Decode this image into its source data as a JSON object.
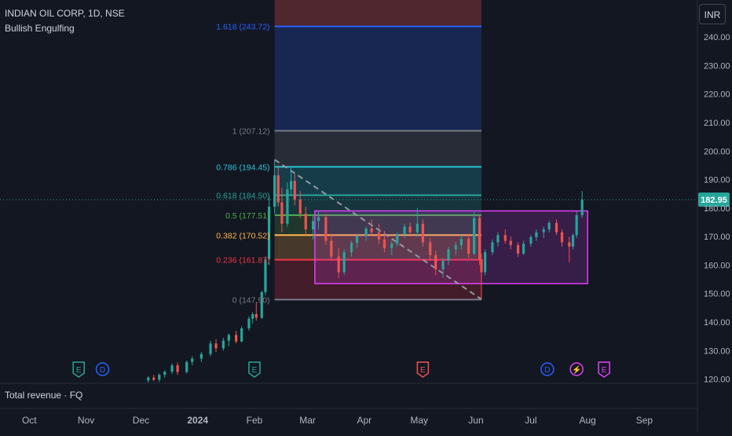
{
  "header": {
    "symbol": "INDIAN OIL CORP, 1D, NSE",
    "indicator": "Bullish Engulfing",
    "currency": "INR"
  },
  "bottom_pane": {
    "label": "Total revenue · FQ"
  },
  "colors": {
    "background": "#131722",
    "up": "#26a69a",
    "down": "#ef5350",
    "fib_1618": "#2962ff",
    "fib_1": "#787b86",
    "fib_0786": "#26c6da",
    "fib_0618": "#26a69a",
    "fib_05": "#4caf50",
    "fib_0382": "#ffb74d",
    "fib_0236": "#f23645",
    "box": "#e040fb",
    "price_badge": "#26a69a"
  },
  "chart_data": {
    "type": "candlestick",
    "title": "INDIAN OIL CORP, 1D, NSE",
    "x_ticks": [
      "Oct",
      "Nov",
      "Dec",
      "2024",
      "Feb",
      "Mar",
      "Apr",
      "May",
      "Jun",
      "Jul",
      "Aug",
      "Sep"
    ],
    "y_ticks": [
      120,
      130,
      140,
      150,
      160,
      170,
      180,
      190,
      200,
      210,
      220,
      230,
      240
    ],
    "y_tick_labels": [
      "120.00",
      "130.00",
      "140.00",
      "150.00",
      "160.00",
      "170.00",
      "180.00",
      "190.00",
      "200.00",
      "210.00",
      "220.00",
      "230.00",
      "240.00"
    ],
    "ylim": [
      118.5,
      253
    ],
    "x_start": "2023-09-15",
    "x_end": "2024-09-30",
    "last_price": "182.95",
    "last_price_value": 182.95,
    "series": [
      {
        "date": "2023-12-05",
        "open": 119.5,
        "high": 121,
        "low": 118.8,
        "close": 120.5
      },
      {
        "date": "2023-12-08",
        "open": 120.5,
        "high": 121.5,
        "low": 119.2,
        "close": 119.8
      },
      {
        "date": "2023-12-11",
        "open": 119.8,
        "high": 122,
        "low": 119,
        "close": 121.5
      },
      {
        "date": "2023-12-14",
        "open": 121.5,
        "high": 123,
        "low": 120.5,
        "close": 122.6
      },
      {
        "date": "2023-12-18",
        "open": 122.6,
        "high": 125.5,
        "low": 121.8,
        "close": 124.8
      },
      {
        "date": "2023-12-21",
        "open": 124.8,
        "high": 125.8,
        "low": 121.5,
        "close": 122.5
      },
      {
        "date": "2023-12-26",
        "open": 122.5,
        "high": 126.5,
        "low": 122,
        "close": 126
      },
      {
        "date": "2023-12-29",
        "open": 126,
        "high": 128,
        "low": 124.8,
        "close": 127.2
      },
      {
        "date": "2024-01-03",
        "open": 127.2,
        "high": 129.5,
        "low": 126,
        "close": 128.8
      },
      {
        "date": "2024-01-08",
        "open": 128.8,
        "high": 133.5,
        "low": 128,
        "close": 132.5
      },
      {
        "date": "2024-01-11",
        "open": 132.5,
        "high": 134,
        "low": 129.5,
        "close": 130.8
      },
      {
        "date": "2024-01-15",
        "open": 130.8,
        "high": 134.5,
        "low": 130,
        "close": 133.5
      },
      {
        "date": "2024-01-18",
        "open": 133.5,
        "high": 136,
        "low": 131.5,
        "close": 135.5
      },
      {
        "date": "2024-01-22",
        "open": 135.5,
        "high": 137,
        "low": 132.5,
        "close": 133.2
      },
      {
        "date": "2024-01-25",
        "open": 133.2,
        "high": 138.5,
        "low": 132.8,
        "close": 137.8
      },
      {
        "date": "2024-01-29",
        "open": 137.8,
        "high": 142,
        "low": 137,
        "close": 141.2
      },
      {
        "date": "2024-01-31",
        "open": 141.2,
        "high": 143.5,
        "low": 139.5,
        "close": 142.8
      },
      {
        "date": "2024-02-02",
        "open": 142.8,
        "high": 147,
        "low": 140.5,
        "close": 141.5
      },
      {
        "date": "2024-02-05",
        "open": 141.5,
        "high": 151,
        "low": 141,
        "close": 150.5
      },
      {
        "date": "2024-02-07",
        "open": 150.5,
        "high": 163,
        "low": 149.5,
        "close": 162
      },
      {
        "date": "2024-02-09",
        "open": 162,
        "high": 184,
        "low": 160,
        "close": 180.5
      },
      {
        "date": "2024-02-12",
        "open": 180.5,
        "high": 196.8,
        "low": 178,
        "close": 191.5
      },
      {
        "date": "2024-02-14",
        "open": 191.5,
        "high": 195,
        "low": 180.5,
        "close": 182
      },
      {
        "date": "2024-02-16",
        "open": 182,
        "high": 187,
        "low": 171.5,
        "close": 174.5
      },
      {
        "date": "2024-02-19",
        "open": 174.5,
        "high": 189,
        "low": 173.5,
        "close": 186.5
      },
      {
        "date": "2024-02-21",
        "open": 186.5,
        "high": 194.5,
        "low": 184.5,
        "close": 189.5
      },
      {
        "date": "2024-02-23",
        "open": 189.5,
        "high": 192,
        "low": 181,
        "close": 183
      },
      {
        "date": "2024-02-26",
        "open": 183,
        "high": 186,
        "low": 176.5,
        "close": 178
      },
      {
        "date": "2024-02-29",
        "open": 178,
        "high": 180.5,
        "low": 170.5,
        "close": 172.5
      },
      {
        "date": "2024-03-04",
        "open": 172.5,
        "high": 177.5,
        "low": 169,
        "close": 175.5
      },
      {
        "date": "2024-03-07",
        "open": 175.5,
        "high": 179,
        "low": 172.5,
        "close": 176.8
      },
      {
        "date": "2024-03-11",
        "open": 176.8,
        "high": 178,
        "low": 167,
        "close": 168.5
      },
      {
        "date": "2024-03-14",
        "open": 168.5,
        "high": 171,
        "low": 161.5,
        "close": 163
      },
      {
        "date": "2024-03-18",
        "open": 163,
        "high": 166,
        "low": 155.5,
        "close": 157.5
      },
      {
        "date": "2024-03-21",
        "open": 157.5,
        "high": 165.5,
        "low": 156.5,
        "close": 164.5
      },
      {
        "date": "2024-03-25",
        "open": 164.5,
        "high": 168.5,
        "low": 163,
        "close": 167.8
      },
      {
        "date": "2024-03-28",
        "open": 167.8,
        "high": 171,
        "low": 166,
        "close": 170.2
      },
      {
        "date": "2024-04-02",
        "open": 170.2,
        "high": 173.5,
        "low": 168.5,
        "close": 172.8
      },
      {
        "date": "2024-04-05",
        "open": 172.8,
        "high": 176,
        "low": 170.5,
        "close": 171.5
      },
      {
        "date": "2024-04-09",
        "open": 171.5,
        "high": 174.5,
        "low": 167.5,
        "close": 169
      },
      {
        "date": "2024-04-12",
        "open": 169,
        "high": 172,
        "low": 164.5,
        "close": 166
      },
      {
        "date": "2024-04-16",
        "open": 166,
        "high": 168.5,
        "low": 163.5,
        "close": 167.5
      },
      {
        "date": "2024-04-19",
        "open": 167.5,
        "high": 171.5,
        "low": 166.5,
        "close": 170.8
      },
      {
        "date": "2024-04-23",
        "open": 170.8,
        "high": 174.5,
        "low": 169.5,
        "close": 173.5
      },
      {
        "date": "2024-04-26",
        "open": 173.5,
        "high": 175,
        "low": 170.5,
        "close": 171.5
      },
      {
        "date": "2024-04-30",
        "open": 171.5,
        "high": 180,
        "low": 170,
        "close": 174.5
      },
      {
        "date": "2024-05-03",
        "open": 174.5,
        "high": 176,
        "low": 166.5,
        "close": 168
      },
      {
        "date": "2024-05-07",
        "open": 168,
        "high": 169.5,
        "low": 161.5,
        "close": 163.5
      },
      {
        "date": "2024-05-10",
        "open": 163.5,
        "high": 165,
        "low": 156.5,
        "close": 158.5
      },
      {
        "date": "2024-05-14",
        "open": 158.5,
        "high": 162.5,
        "low": 155.5,
        "close": 161.5
      },
      {
        "date": "2024-05-17",
        "open": 161.5,
        "high": 166.5,
        "low": 160,
        "close": 165.5
      },
      {
        "date": "2024-05-21",
        "open": 165.5,
        "high": 168,
        "low": 163.5,
        "close": 167
      },
      {
        "date": "2024-05-24",
        "open": 167,
        "high": 170.5,
        "low": 165.5,
        "close": 169.2
      },
      {
        "date": "2024-05-28",
        "open": 169.2,
        "high": 171,
        "low": 162.5,
        "close": 164
      },
      {
        "date": "2024-05-31",
        "open": 164,
        "high": 178.5,
        "low": 163.5,
        "close": 176.5
      },
      {
        "date": "2024-06-03",
        "open": 176.5,
        "high": 177.5,
        "low": 160,
        "close": 162
      },
      {
        "date": "2024-06-04",
        "open": 162,
        "high": 164,
        "low": 148,
        "close": 157.5
      },
      {
        "date": "2024-06-06",
        "open": 157.5,
        "high": 165.5,
        "low": 156.5,
        "close": 164.5
      },
      {
        "date": "2024-06-10",
        "open": 164.5,
        "high": 169,
        "low": 163.5,
        "close": 168
      },
      {
        "date": "2024-06-13",
        "open": 168,
        "high": 171.5,
        "low": 166.5,
        "close": 170.5
      },
      {
        "date": "2024-06-17",
        "open": 170.5,
        "high": 172.5,
        "low": 167.5,
        "close": 168.5
      },
      {
        "date": "2024-06-20",
        "open": 168.5,
        "high": 170,
        "low": 165.5,
        "close": 167
      },
      {
        "date": "2024-06-24",
        "open": 167,
        "high": 168,
        "low": 162.8,
        "close": 164
      },
      {
        "date": "2024-06-27",
        "open": 164,
        "high": 168.5,
        "low": 163.5,
        "close": 167.5
      },
      {
        "date": "2024-07-01",
        "open": 167.5,
        "high": 170.5,
        "low": 166.5,
        "close": 169.8
      },
      {
        "date": "2024-07-04",
        "open": 169.8,
        "high": 172.5,
        "low": 168.5,
        "close": 171.5
      },
      {
        "date": "2024-07-08",
        "open": 171.5,
        "high": 173.5,
        "low": 169.5,
        "close": 172.5
      },
      {
        "date": "2024-07-11",
        "open": 172.5,
        "high": 175.5,
        "low": 171.5,
        "close": 174.8
      },
      {
        "date": "2024-07-15",
        "open": 174.8,
        "high": 176,
        "low": 170.5,
        "close": 171.5
      },
      {
        "date": "2024-07-18",
        "open": 171.5,
        "high": 172.5,
        "low": 166.5,
        "close": 168
      },
      {
        "date": "2024-07-22",
        "open": 168,
        "high": 170,
        "low": 161,
        "close": 166.5
      },
      {
        "date": "2024-07-24",
        "open": 166.5,
        "high": 171,
        "low": 165.5,
        "close": 170.5
      },
      {
        "date": "2024-07-26",
        "open": 170.5,
        "high": 179,
        "low": 169.5,
        "close": 177.5
      },
      {
        "date": "2024-07-29",
        "open": 177.5,
        "high": 186,
        "low": 176.5,
        "close": 182.95
      }
    ],
    "fib_retracement": {
      "date_start": "2024-02-12",
      "date_end": "2024-06-04",
      "levels": [
        {
          "ratio": "1.618",
          "label": "1.618 (243.72)",
          "value": 243.72,
          "color": "#2962ff"
        },
        {
          "ratio": "1",
          "label": "1 (207.12)",
          "value": 207.12,
          "color": "#787b86"
        },
        {
          "ratio": "0.786",
          "label": "0.786 (194.45)",
          "value": 194.45,
          "color": "#26c6da"
        },
        {
          "ratio": "0.618",
          "label": "0.618 (184.50)",
          "value": 184.5,
          "color": "#26a69a"
        },
        {
          "ratio": "0.5",
          "label": "0.5 (177.51)",
          "value": 177.51,
          "color": "#4caf50"
        },
        {
          "ratio": "0.382",
          "label": "0.382 (170.52)",
          "value": 170.52,
          "color": "#ffb74d"
        },
        {
          "ratio": "0.236",
          "label": "0.236 (161.87)",
          "value": 161.87,
          "color": "#f23645"
        },
        {
          "ratio": "0",
          "label": "0 (147.90)",
          "value": 147.9,
          "color": "#787b86"
        }
      ]
    },
    "trendline": {
      "date_start": "2024-02-12",
      "value_start": 197,
      "date_end": "2024-06-04",
      "value_end": 148
    },
    "consolidation_box": {
      "date_start": "2024-03-05",
      "date_end": "2024-08-01",
      "top": 179,
      "bottom": 153.5
    },
    "event_markers": [
      {
        "date": "2023-10-28",
        "symbol": "E",
        "kind": "earnings",
        "color": "#26a69a"
      },
      {
        "date": "2023-11-10",
        "symbol": "D",
        "kind": "dividend",
        "color": "#2962ff"
      },
      {
        "date": "2024-02-01",
        "symbol": "E",
        "kind": "earnings",
        "color": "#26a69a"
      },
      {
        "date": "2024-05-03",
        "symbol": "E",
        "kind": "earnings",
        "color": "#ef5350"
      },
      {
        "date": "2024-07-10",
        "symbol": "D",
        "kind": "dividend",
        "color": "#2962ff"
      },
      {
        "date": "2024-07-26",
        "symbol": "⚡",
        "kind": "split",
        "color": "#e040fb"
      },
      {
        "date": "2024-08-10",
        "symbol": "E",
        "kind": "earnings",
        "color": "#e040fb"
      }
    ]
  }
}
